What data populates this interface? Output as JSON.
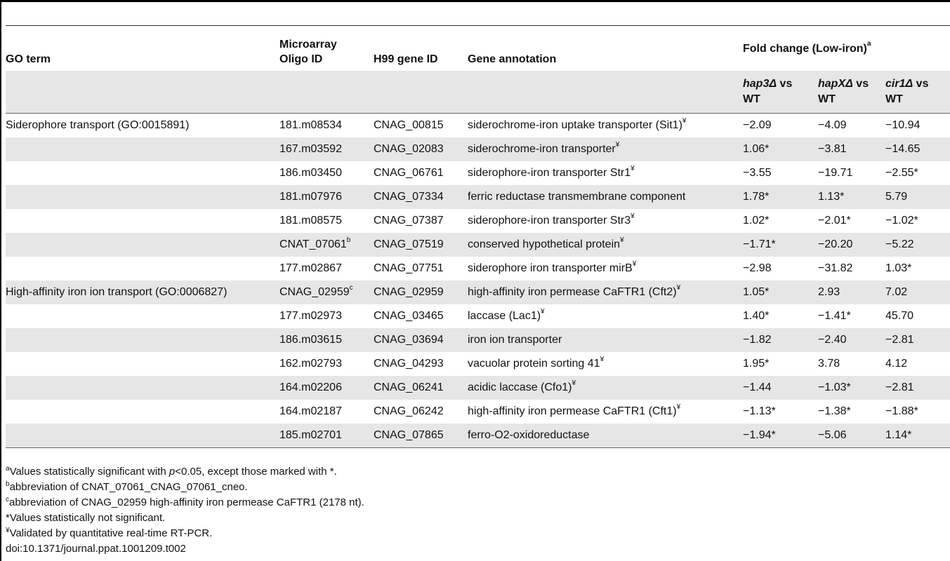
{
  "headers": {
    "go_term": "GO term",
    "oligo_line1": "Microarray",
    "oligo_line2": "Oligo ID",
    "gene_id": "H99 gene ID",
    "annotation": "Gene annotation",
    "fold_change": "Fold change (Low-iron)",
    "fold_change_sup": "a",
    "sub": [
      {
        "strain": "hap3Δ",
        "vs": " vs",
        "wt": "WT"
      },
      {
        "strain": "hapXΔ",
        "vs": " vs",
        "wt": "WT"
      },
      {
        "strain": "cir1Δ",
        "vs": " vs",
        "wt": "WT"
      }
    ]
  },
  "rows": [
    {
      "go": "Siderophore transport (GO:0015891)",
      "oligo": "181.m08534",
      "oligo_sup": "",
      "gene": "CNAG_00815",
      "annot": "siderochrome-iron uptake transporter (Sit1)",
      "annot_sup": "¥",
      "hap3": "−2.09",
      "hapx": "−4.09",
      "cir1": "−10.94"
    },
    {
      "go": "",
      "oligo": "167.m03592",
      "oligo_sup": "",
      "gene": "CNAG_02083",
      "annot": "siderochrome-iron transporter",
      "annot_sup": "¥",
      "hap3": "1.06*",
      "hapx": "−3.81",
      "cir1": "−14.65"
    },
    {
      "go": "",
      "oligo": "186.m03450",
      "oligo_sup": "",
      "gene": "CNAG_06761",
      "annot": "siderophore-iron transporter Str1",
      "annot_sup": "¥",
      "hap3": "−3.55",
      "hapx": "−19.71",
      "cir1": "−2.55*"
    },
    {
      "go": "",
      "oligo": "181.m07976",
      "oligo_sup": "",
      "gene": "CNAG_07334",
      "annot": "ferric reductase transmembrane component",
      "annot_sup": "",
      "hap3": "1.78*",
      "hapx": "1.13*",
      "cir1": "5.79"
    },
    {
      "go": "",
      "oligo": "181.m08575",
      "oligo_sup": "",
      "gene": "CNAG_07387",
      "annot": "siderophore-iron transporter Str3",
      "annot_sup": "¥",
      "hap3": "1.02*",
      "hapx": "−2.01*",
      "cir1": "−1.02*"
    },
    {
      "go": "",
      "oligo": "CNAT_07061",
      "oligo_sup": "b",
      "gene": "CNAG_07519",
      "annot": "conserved hypothetical protein",
      "annot_sup": "¥",
      "hap3": "−1.71*",
      "hapx": "−20.20",
      "cir1": "−5.22"
    },
    {
      "go": "",
      "oligo": "177.m02867",
      "oligo_sup": "",
      "gene": "CNAG_07751",
      "annot": "siderophore iron transporter mirB",
      "annot_sup": "¥",
      "hap3": "−2.98",
      "hapx": "−31.82",
      "cir1": "1.03*"
    },
    {
      "go": "High-affinity iron ion transport (GO:0006827)",
      "oligo": "CNAG_02959",
      "oligo_sup": "c",
      "gene": "CNAG_02959",
      "annot": "high-affinity iron permease CaFTR1 (Cft2)",
      "annot_sup": "¥",
      "hap3": "1.05*",
      "hapx": "2.93",
      "cir1": "7.02"
    },
    {
      "go": "",
      "oligo": "177.m02973",
      "oligo_sup": "",
      "gene": "CNAG_03465",
      "annot": "laccase (Lac1)",
      "annot_sup": "¥",
      "hap3": "1.40*",
      "hapx": "−1.41*",
      "cir1": "45.70"
    },
    {
      "go": "",
      "oligo": "186.m03615",
      "oligo_sup": "",
      "gene": "CNAG_03694",
      "annot": "iron ion transporter",
      "annot_sup": "",
      "hap3": "−1.82",
      "hapx": "−2.40",
      "cir1": "−2.81"
    },
    {
      "go": "",
      "oligo": "162.m02793",
      "oligo_sup": "",
      "gene": "CNAG_04293",
      "annot": "vacuolar protein sorting 41",
      "annot_sup": "¥",
      "hap3": "1.95*",
      "hapx": "3.78",
      "cir1": "4.12"
    },
    {
      "go": "",
      "oligo": "164.m02206",
      "oligo_sup": "",
      "gene": "CNAG_06241",
      "annot": "acidic laccase (Cfo1)",
      "annot_sup": "¥",
      "hap3": "−1.44",
      "hapx": "−1.03*",
      "cir1": "−2.81"
    },
    {
      "go": "",
      "oligo": "164.m02187",
      "oligo_sup": "",
      "gene": "CNAG_06242",
      "annot": "high-affinity iron permease CaFTR1 (Cft1)",
      "annot_sup": "¥",
      "hap3": "−1.13*",
      "hapx": "−1.38*",
      "cir1": "−1.88*"
    },
    {
      "go": "",
      "oligo": "185.m02701",
      "oligo_sup": "",
      "gene": "CNAG_07865",
      "annot": "ferro-O2-oxidoreductase",
      "annot_sup": "",
      "hap3": "−1.94*",
      "hapx": "−5.06",
      "cir1": "1.14*"
    }
  ],
  "footnotes": {
    "a_sup": "a",
    "a_pre": "Values statistically significant with ",
    "a_p": "p",
    "a_post": "<0.05, except those marked with *.",
    "b_sup": "b",
    "b_text": "abbreviation of CNAT_07061_CNAG_07061_cneo.",
    "c_sup": "c",
    "c_text": "abbreviation of CNAG_02959 high-affinity iron permease CaFTR1 (2178 nt).",
    "star_text": "*Values statistically not significant.",
    "yen_sup": "¥",
    "yen_text": "Validated by quantitative real-time RT-PCR.",
    "doi": "doi:10.1371/journal.ppat.1001209.t002"
  }
}
